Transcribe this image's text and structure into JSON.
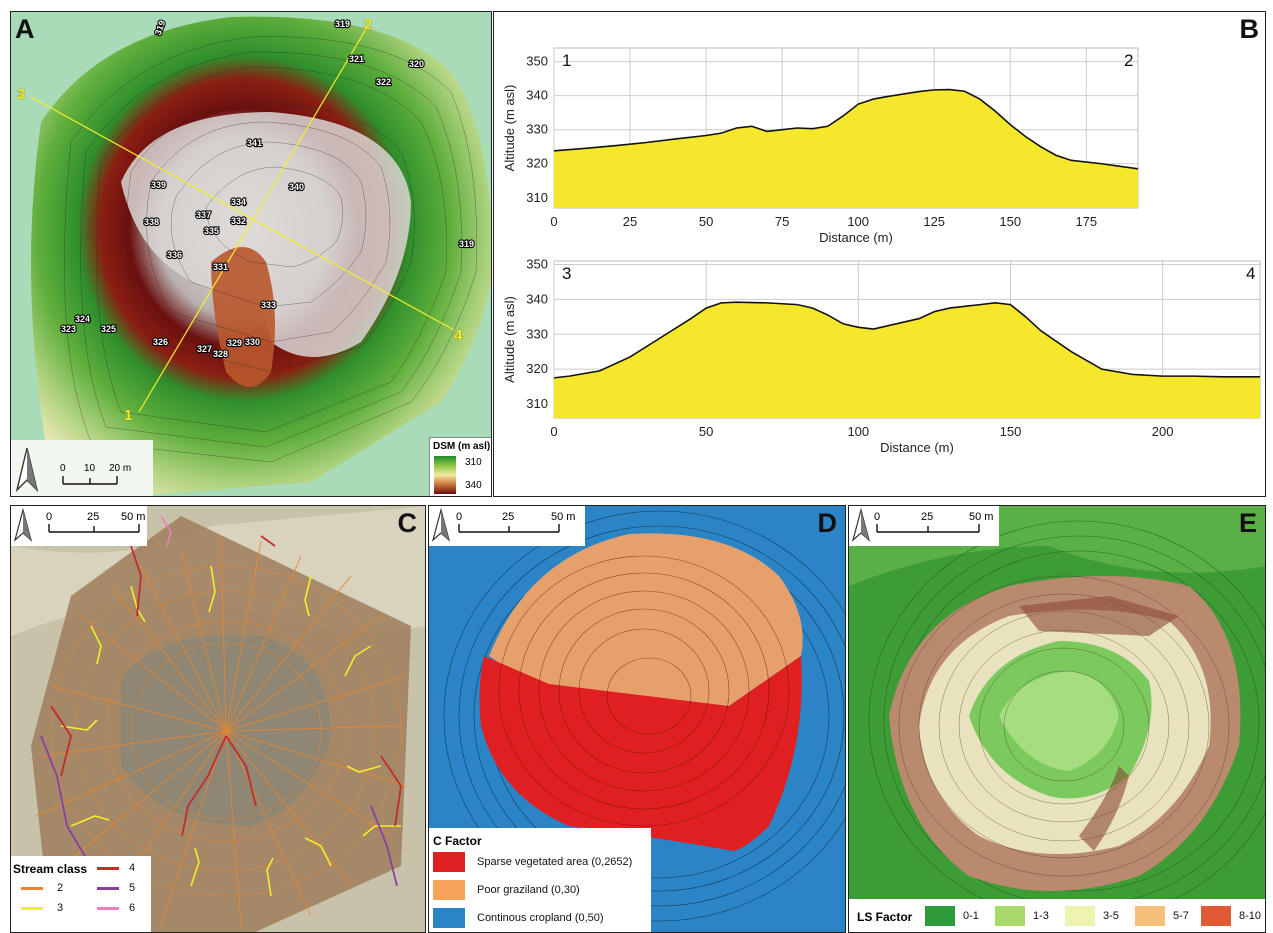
{
  "panels": {
    "A": {
      "letter": "A",
      "transects": [
        "1",
        "2",
        "3",
        "4"
      ],
      "contour_labels": [
        "319",
        "319",
        "321",
        "322",
        "320",
        "341",
        "340",
        "339",
        "334",
        "337",
        "338",
        "335",
        "336",
        "331",
        "332",
        "333",
        "319",
        "324",
        "325",
        "323",
        "326",
        "327",
        "328",
        "329",
        "330"
      ],
      "scale": {
        "ticks": [
          "0",
          "10",
          "20 m"
        ]
      },
      "legend": {
        "title": "DSM (m asl)",
        "max": "310",
        "min": "340",
        "colors": [
          "#1f8a2a",
          "#8ec544",
          "#f2e9a0",
          "#c8743a",
          "#6b0f0f"
        ]
      }
    },
    "B": {
      "letter": "B"
    },
    "C": {
      "letter": "C",
      "scale": {
        "ticks": [
          "0",
          "25",
          "50 m"
        ]
      },
      "legend": {
        "title": "Stream class",
        "items": [
          {
            "label": "2",
            "color": "#e8872e"
          },
          {
            "label": "3",
            "color": "#f1ee2c"
          },
          {
            "label": "4",
            "color": "#c72a2a"
          },
          {
            "label": "5",
            "color": "#8a3fa6"
          },
          {
            "label": "6",
            "color": "#ee7dc0"
          }
        ]
      }
    },
    "D": {
      "letter": "D",
      "scale": {
        "ticks": [
          "0",
          "25",
          "50 m"
        ]
      },
      "legend": {
        "title": "C Factor",
        "items": [
          {
            "label": "Sparse vegetated area (0,2652)",
            "color": "#e02020"
          },
          {
            "label": "Poor graziland (0,30)",
            "color": "#f6a35a"
          },
          {
            "label": "Continous cropland (0,50)",
            "color": "#2b84c6"
          }
        ]
      }
    },
    "E": {
      "letter": "E",
      "scale": {
        "ticks": [
          "0",
          "25",
          "50 m"
        ]
      },
      "legend": {
        "title": "LS Factor",
        "items": [
          {
            "label": "0-1",
            "color": "#2e9a3a"
          },
          {
            "label": "1-3",
            "color": "#a9d86a"
          },
          {
            "label": "3-5",
            "color": "#eef3b0"
          },
          {
            "label": "5-7",
            "color": "#f6c07a"
          },
          {
            "label": "8-10",
            "color": "#e05a35"
          }
        ]
      }
    }
  },
  "chart_data": [
    {
      "type": "area",
      "corner_left": "1",
      "corner_right": "2",
      "xlabel": "Distance (m)",
      "ylabel": "Altitude (m asl)",
      "xlim": [
        0,
        192
      ],
      "ylim": [
        307,
        354
      ],
      "xticks": [
        0,
        25,
        50,
        75,
        100,
        125,
        150,
        175
      ],
      "yticks": [
        310,
        320,
        330,
        340,
        350
      ],
      "x": [
        0,
        10,
        20,
        30,
        40,
        50,
        55,
        60,
        65,
        70,
        75,
        80,
        85,
        90,
        95,
        100,
        105,
        110,
        115,
        120,
        125,
        130,
        135,
        140,
        145,
        150,
        155,
        160,
        165,
        170,
        180,
        192
      ],
      "y": [
        323.8,
        324.5,
        325.3,
        326.2,
        327.3,
        328.3,
        329.0,
        330.5,
        331.0,
        329.5,
        330.0,
        330.5,
        330.3,
        331.0,
        334.0,
        337.5,
        339.0,
        339.8,
        340.5,
        341.2,
        341.7,
        341.8,
        341.3,
        339.0,
        335.5,
        331.5,
        328.0,
        325.0,
        322.5,
        321.0,
        320.0,
        318.5
      ]
    },
    {
      "type": "area",
      "corner_left": "3",
      "corner_right": "4",
      "xlabel": "Distance (m)",
      "ylabel": "Altitude (m asl)",
      "xlim": [
        0,
        232
      ],
      "ylim": [
        306,
        351
      ],
      "xticks": [
        0,
        50,
        100,
        150,
        200
      ],
      "yticks": [
        310,
        320,
        330,
        340,
        350
      ],
      "x": [
        0,
        5,
        15,
        25,
        35,
        45,
        50,
        55,
        60,
        70,
        80,
        85,
        90,
        95,
        100,
        105,
        110,
        115,
        120,
        125,
        130,
        135,
        140,
        145,
        150,
        155,
        160,
        170,
        180,
        190,
        200,
        210,
        220,
        232
      ],
      "y": [
        317.5,
        318.0,
        319.5,
        323.5,
        329.0,
        334.5,
        337.5,
        339.0,
        339.2,
        339.0,
        338.5,
        337.5,
        335.5,
        333.0,
        332.0,
        331.5,
        332.5,
        333.5,
        334.5,
        336.5,
        337.5,
        338.0,
        338.5,
        339.0,
        338.5,
        335.0,
        331.0,
        325.0,
        320.0,
        318.5,
        318.0,
        318.0,
        317.8,
        317.8
      ]
    }
  ]
}
